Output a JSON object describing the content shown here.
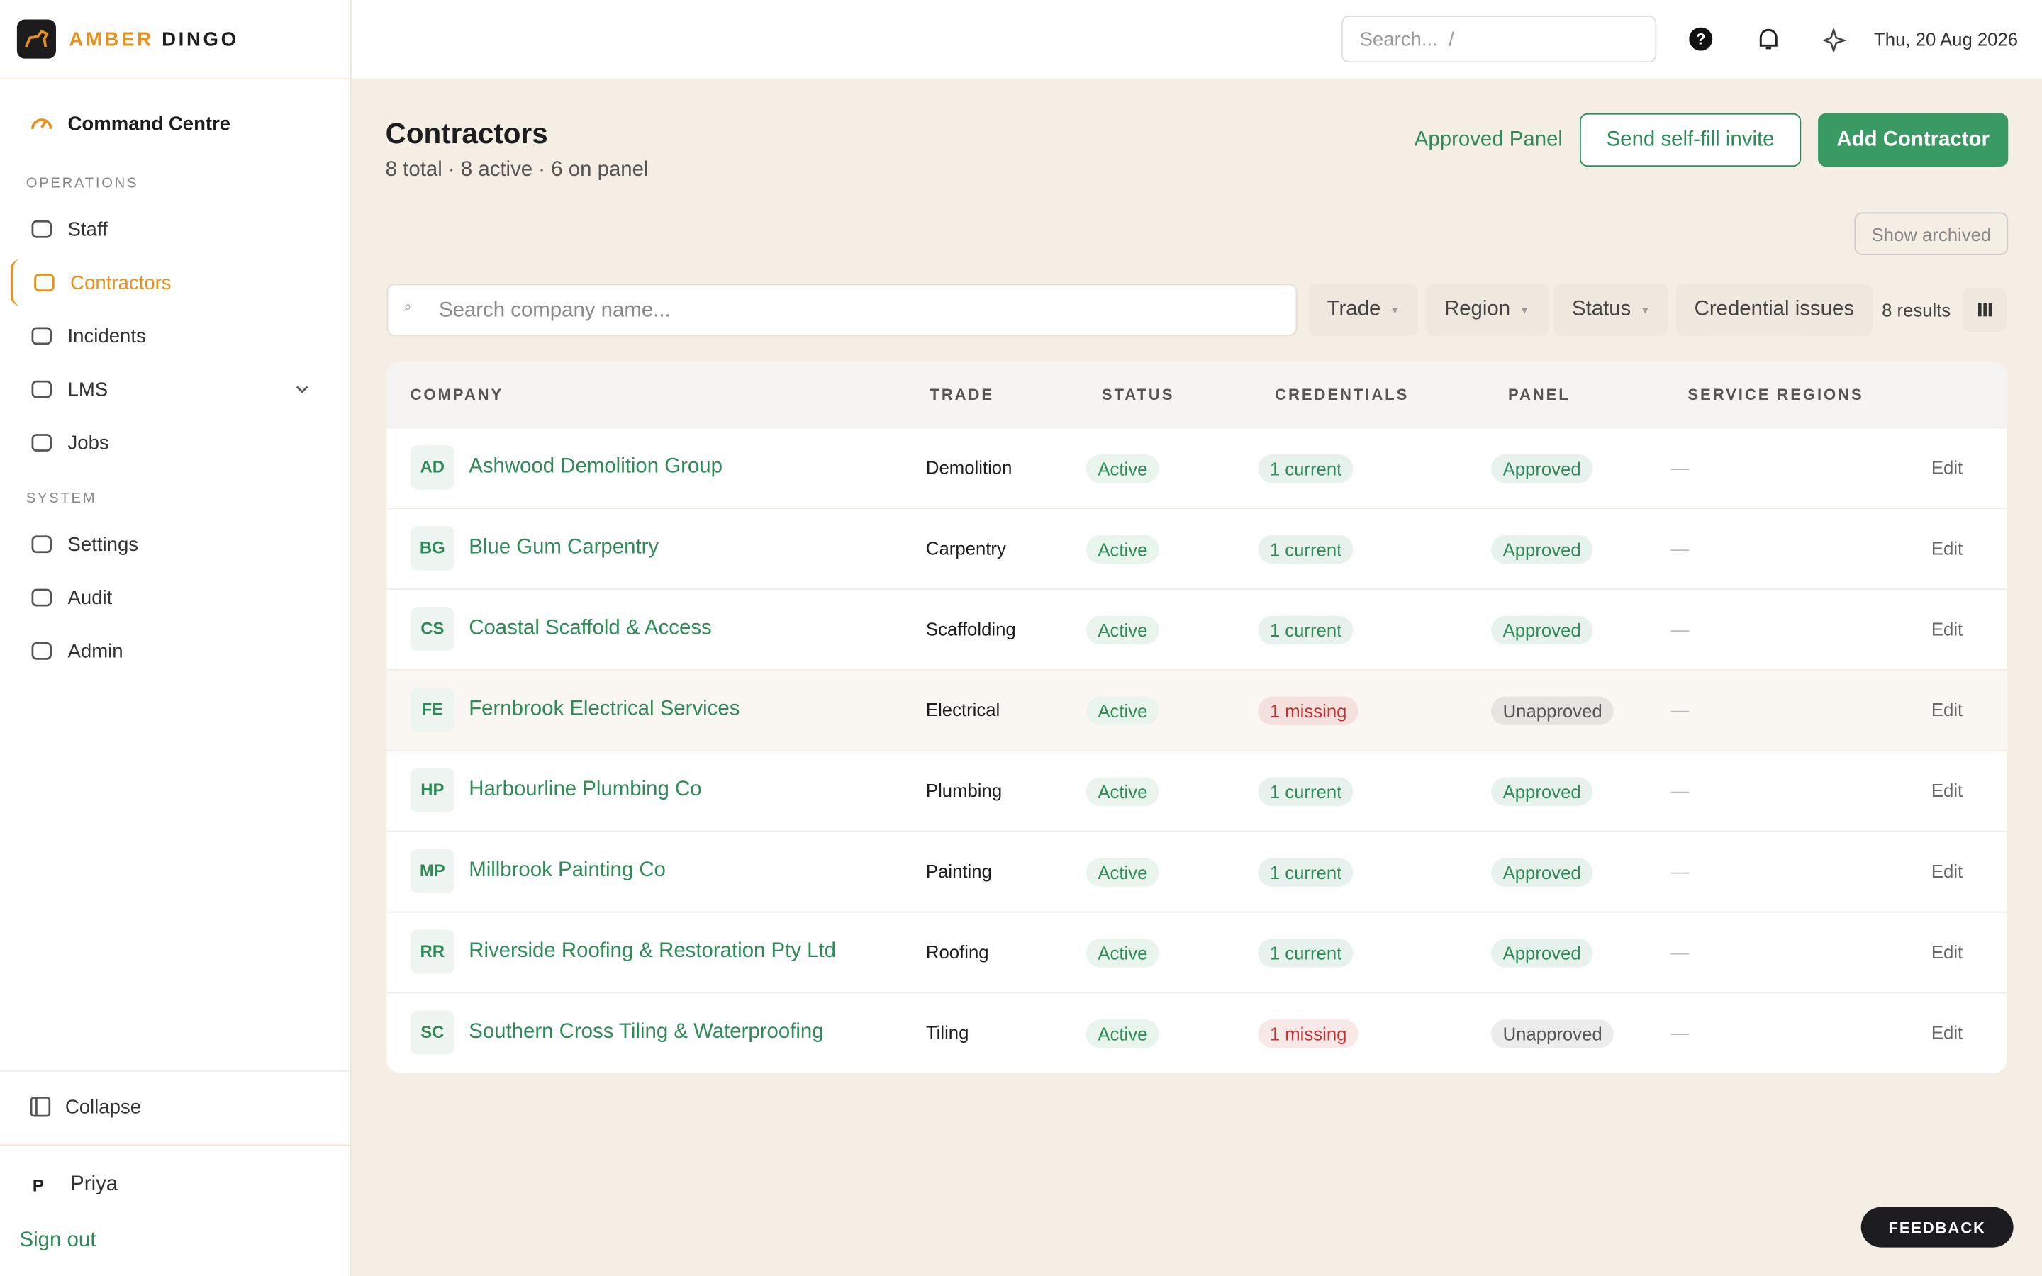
{
  "brand": {
    "part1": "AMBER",
    "part2": "DINGO"
  },
  "sidebar": {
    "top": "Command Centre",
    "sections": [
      {
        "heading": "OPERATIONS",
        "items": [
          "Staff",
          "Contractors",
          "Incidents",
          "LMS",
          "Jobs"
        ]
      },
      {
        "heading": "SYSTEM",
        "items": [
          "Settings",
          "Audit",
          "Admin"
        ]
      }
    ],
    "collapse": "Collapse",
    "user_initial": "P",
    "user": "Priya",
    "sign_out": "Sign out"
  },
  "topbar": {
    "search_placeholder": "Search...  /",
    "date": "Thu, 20 Aug 2026"
  },
  "page": {
    "title": "Contractors",
    "summary": "8 total · 8 active · 6 on panel",
    "approved_panel": "Approved Panel",
    "invite": "Send self-fill invite",
    "add": "Add Contractor",
    "show_archived": "Show archived"
  },
  "filters": {
    "search_placeholder": "Search company name...",
    "dropdowns": [
      "Trade",
      "Region",
      "Status"
    ],
    "credential_issues": "Credential issues",
    "results": "8 results"
  },
  "table": {
    "columns": [
      "COMPANY",
      "TRADE",
      "STATUS",
      "CREDENTIALS",
      "PANEL",
      "SERVICE REGIONS"
    ],
    "rows": [
      {
        "initials": "AD",
        "company": "Ashwood Demolition Group",
        "trade": "Demolition",
        "status": "Active",
        "credentials": "1 current",
        "credentials_color": "#2e8b57",
        "panel": "Approved",
        "panel_color": "#2e8b57",
        "regions": "—",
        "action": "Edit"
      },
      {
        "initials": "BG",
        "company": "Blue Gum Carpentry",
        "trade": "Carpentry",
        "status": "Active",
        "credentials": "1 current",
        "credentials_color": "#2e8b57",
        "panel": "Approved",
        "panel_color": "#2e8b57",
        "regions": "—",
        "action": "Edit"
      },
      {
        "initials": "CS",
        "company": "Coastal Scaffold & Access",
        "trade": "Scaffolding",
        "status": "Active",
        "credentials": "1 current",
        "credentials_color": "#2e8b57",
        "panel": "Approved",
        "panel_color": "#2e8b57",
        "regions": "—",
        "action": "Edit"
      },
      {
        "initials": "FE",
        "company": "Fernbrook Electrical Services",
        "trade": "Electrical",
        "status": "Active",
        "credentials": "1 missing",
        "credentials_color": "#c53030",
        "panel": "Unapproved",
        "panel_color": "#555555",
        "regions": "—",
        "action": "Edit"
      },
      {
        "initials": "HP",
        "company": "Harbourline Plumbing Co",
        "trade": "Plumbing",
        "status": "Active",
        "credentials": "1 current",
        "credentials_color": "#2e8b57",
        "panel": "Approved",
        "panel_color": "#2e8b57",
        "regions": "—",
        "action": "Edit"
      },
      {
        "initials": "MP",
        "company": "Millbrook Painting Co",
        "trade": "Painting",
        "status": "Active",
        "credentials": "1 current",
        "credentials_color": "#2e8b57",
        "panel": "Approved",
        "panel_color": "#2e8b57",
        "regions": "—",
        "action": "Edit"
      },
      {
        "initials": "RR",
        "company": "Riverside Roofing & Restoration Pty Ltd",
        "trade": "Roofing",
        "status": "Active",
        "credentials": "1 current",
        "credentials_color": "#2e8b57",
        "panel": "Approved",
        "panel_color": "#2e8b57",
        "regions": "—",
        "action": "Edit"
      },
      {
        "initials": "SC",
        "company": "Southern Cross Tiling & Waterproofing",
        "trade": "Tiling",
        "status": "Active",
        "credentials": "1 missing",
        "credentials_color": "#c53030",
        "panel": "Unapproved",
        "panel_color": "#555555",
        "regions": "—",
        "action": "Edit"
      }
    ]
  },
  "feedback": "FEEDBACK"
}
